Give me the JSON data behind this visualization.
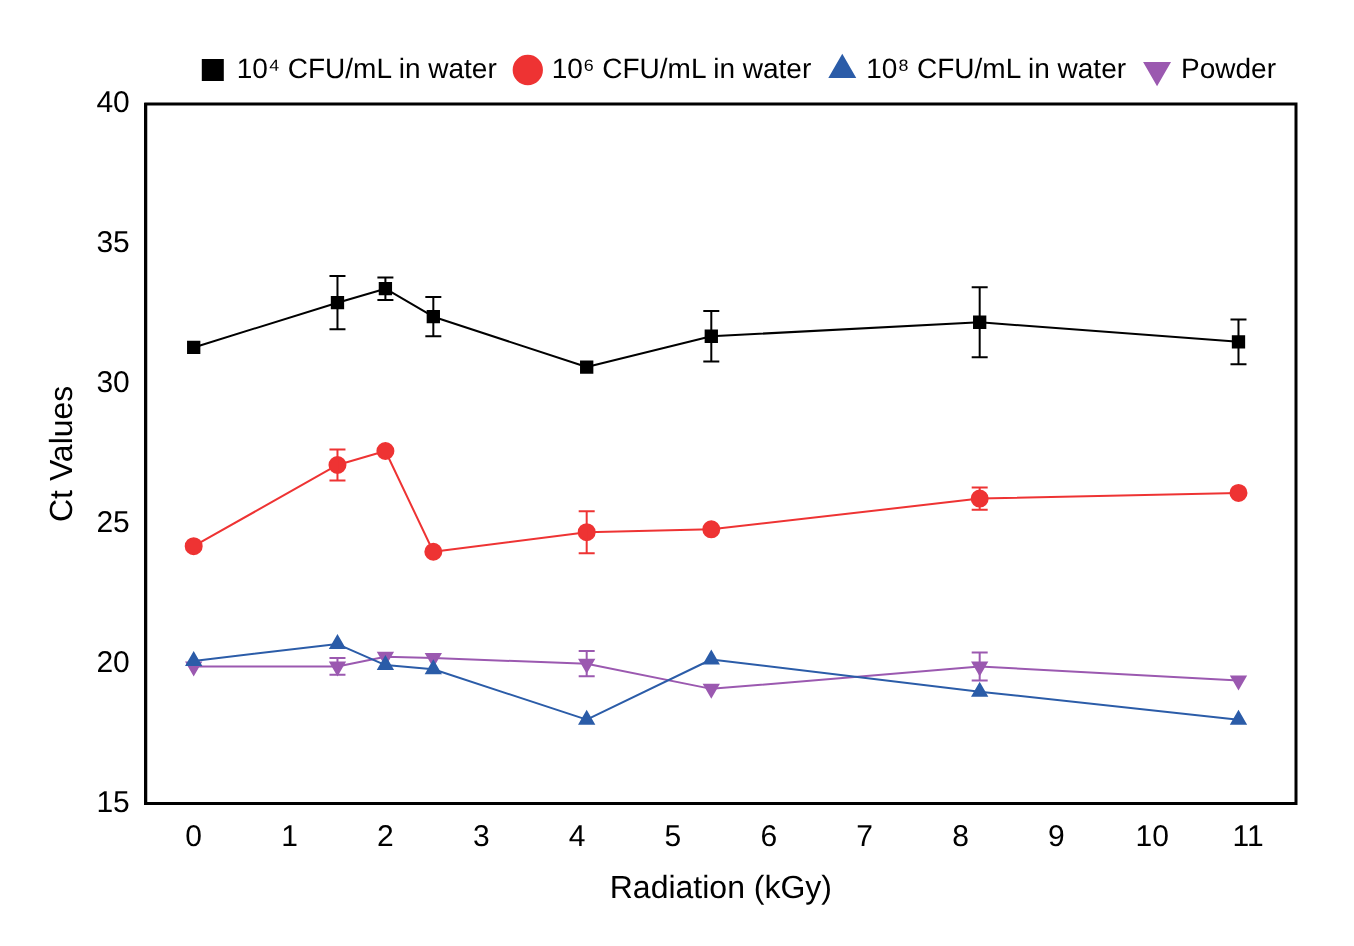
{
  "chart_data": {
    "type": "line",
    "xlabel": "Radiation (kGy)",
    "ylabel": "Ct Values",
    "x": [
      0,
      1.5,
      2,
      2.5,
      4.1,
      5.4,
      8.2,
      10.9
    ],
    "xlim": [
      -0.5,
      11.5
    ],
    "xticks": [
      0,
      1,
      2,
      3,
      4,
      5,
      6,
      7,
      8,
      9,
      10,
      11
    ],
    "ylim": [
      15,
      40
    ],
    "yticks": [
      15,
      20,
      25,
      30,
      35,
      40
    ],
    "grid": false,
    "legend": "top right",
    "series": [
      {
        "name": "10⁴ CFU/mL in water",
        "color": "#000000",
        "marker": "square",
        "values": [
          31.3,
          32.9,
          33.4,
          32.4,
          30.6,
          31.7,
          32.2,
          31.5
        ],
        "errors": [
          null,
          0.95,
          0.4,
          0.7,
          null,
          0.9,
          1.25,
          0.8
        ]
      },
      {
        "name": "10⁶ CFU/mL in water",
        "color": "#ee3333",
        "marker": "circle",
        "values": [
          24.2,
          27.1,
          27.6,
          24.0,
          24.7,
          24.8,
          25.9,
          26.1
        ],
        "errors": [
          null,
          0.55,
          null,
          null,
          0.75,
          null,
          0.4,
          null
        ]
      },
      {
        "name": "10⁸ CFU/mL in water",
        "color": "#2b5ca8",
        "marker": "triangle",
        "values": [
          20.1,
          20.7,
          19.95,
          19.8,
          18.0,
          20.15,
          19.0,
          18.0
        ],
        "errors": [
          null,
          null,
          null,
          null,
          null,
          null,
          null,
          null
        ]
      },
      {
        "name": "Powder",
        "color": "#9b59b0",
        "marker": "triangle-down",
        "values": [
          19.9,
          19.9,
          20.25,
          20.2,
          20.0,
          19.1,
          19.9,
          19.4
        ],
        "errors": [
          null,
          0.3,
          null,
          null,
          0.45,
          null,
          0.5,
          null
        ]
      }
    ]
  }
}
